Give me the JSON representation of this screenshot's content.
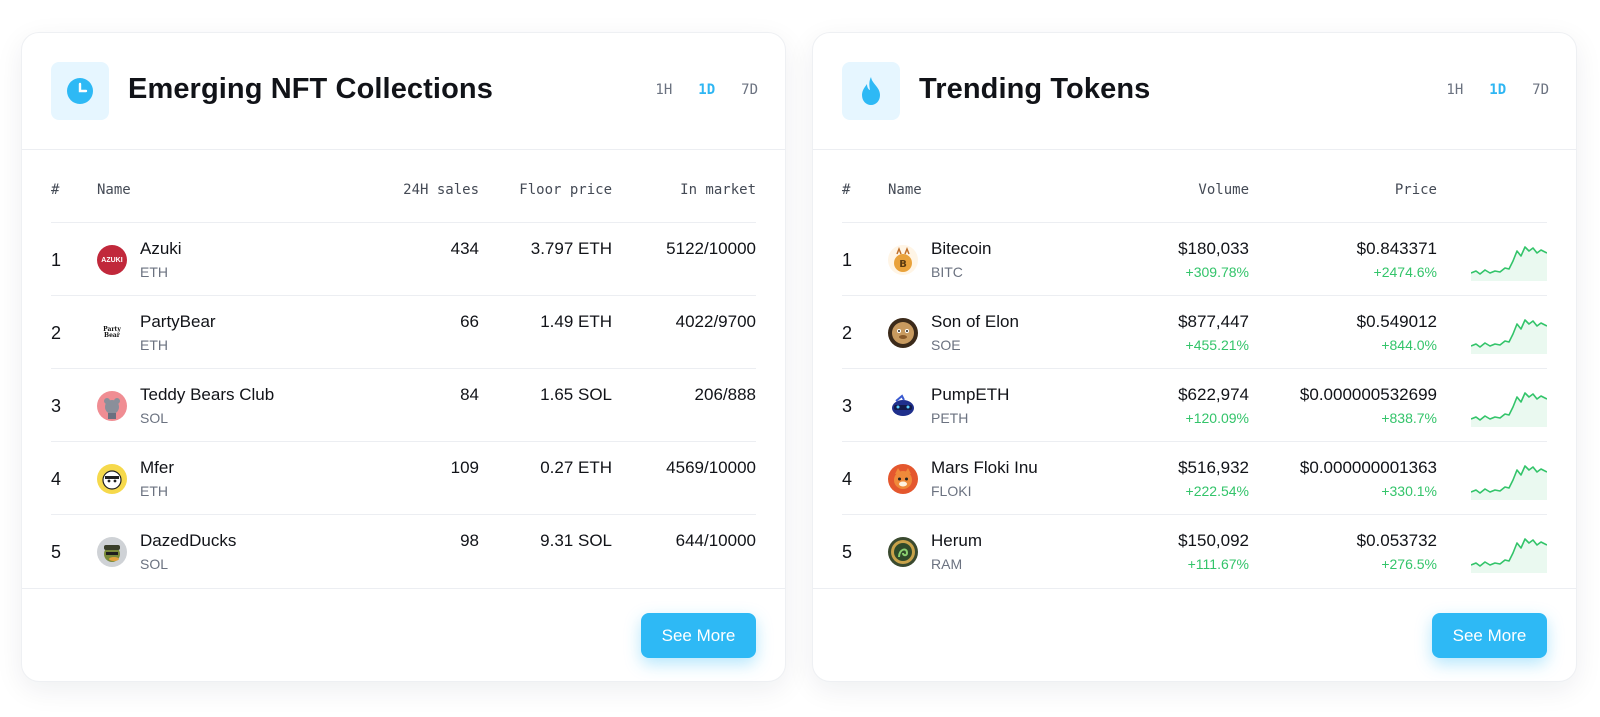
{
  "nft": {
    "title": "Emerging NFT Collections",
    "icon": "clock-icon",
    "ranges": [
      "1H",
      "1D",
      "7D"
    ],
    "active_range": "1D",
    "columns": [
      "#",
      "Name",
      "24H sales",
      "Floor price",
      "In market"
    ],
    "rows": [
      {
        "rank": "1",
        "name": "Azuki",
        "chain": "ETH",
        "sales": "434",
        "floor": "3.797 ETH",
        "market": "5122/10000",
        "avatar_text": "AZUKI",
        "avatar_color": "#c1283b"
      },
      {
        "rank": "2",
        "name": "PartyBear",
        "chain": "ETH",
        "sales": "66",
        "floor": "1.49 ETH",
        "market": "4022/9700",
        "avatar_text": "Party Bear",
        "avatar_color": "#ffffff"
      },
      {
        "rank": "3",
        "name": "Teddy Bears Club",
        "chain": "SOL",
        "sales": "84",
        "floor": "1.65 SOL",
        "market": "206/888",
        "avatar_color": "#f08d93"
      },
      {
        "rank": "4",
        "name": "Mfer",
        "chain": "ETH",
        "sales": "109",
        "floor": "0.27 ETH",
        "market": "4569/10000",
        "avatar_color": "#f6d94b"
      },
      {
        "rank": "5",
        "name": "DazedDucks",
        "chain": "SOL",
        "sales": "98",
        "floor": "9.31 SOL",
        "market": "644/10000",
        "avatar_color": "#cfd2d6"
      }
    ],
    "see_more": "See More"
  },
  "tokens": {
    "title": "Trending Tokens",
    "icon": "flame-icon",
    "ranges": [
      "1H",
      "1D",
      "7D"
    ],
    "active_range": "1D",
    "columns": [
      "#",
      "Name",
      "Volume",
      "Price"
    ],
    "rows": [
      {
        "rank": "1",
        "name": "Bitecoin",
        "symbol": "BITC",
        "volume": "$180,033",
        "volume_change": "+309.78%",
        "price": "$0.843371",
        "price_change": "+2474.6%",
        "avatar_color": "#e9a23b"
      },
      {
        "rank": "2",
        "name": "Son of Elon",
        "symbol": "SOE",
        "volume": "$877,447",
        "volume_change": "+455.21%",
        "price": "$0.549012",
        "price_change": "+844.0%",
        "avatar_color": "#c89a5f"
      },
      {
        "rank": "3",
        "name": "PumpETH",
        "symbol": "PETH",
        "volume": "$622,974",
        "volume_change": "+120.09%",
        "price": "$0.000000532699",
        "price_change": "+838.7%",
        "avatar_color": "#1f2f8c"
      },
      {
        "rank": "4",
        "name": "Mars Floki Inu",
        "symbol": "FLOKI",
        "volume": "$516,932",
        "volume_change": "+222.54%",
        "price": "$0.000000001363",
        "price_change": "+330.1%",
        "avatar_color": "#e4572e"
      },
      {
        "rank": "5",
        "name": "Herum",
        "symbol": "RAM",
        "volume": "$150,092",
        "volume_change": "+111.67%",
        "price": "$0.053732",
        "price_change": "+276.5%",
        "avatar_color": "#3a4a2f"
      }
    ],
    "see_more": "See More"
  },
  "colors": {
    "accent": "#2eb9f5",
    "positive": "#33c46a",
    "icon_bg": "#e6f6ff"
  }
}
